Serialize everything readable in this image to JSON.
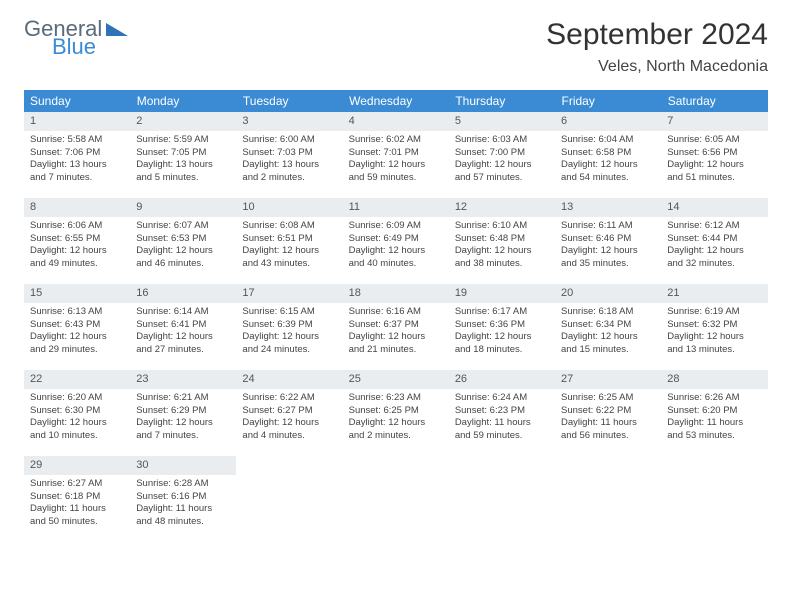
{
  "logo": {
    "general": "General",
    "blue": "Blue",
    "tri_color": "#2f72b5"
  },
  "header": {
    "month_title": "September 2024",
    "location": "Veles, North Macedonia"
  },
  "colors": {
    "header_bg": "#3b8bd4",
    "band_bg": "#e9edef",
    "text": "#444444"
  },
  "weekdays": [
    "Sunday",
    "Monday",
    "Tuesday",
    "Wednesday",
    "Thursday",
    "Friday",
    "Saturday"
  ],
  "weeks": [
    [
      {
        "n": "1",
        "sr": "Sunrise: 5:58 AM",
        "ss": "Sunset: 7:06 PM",
        "dl": "Daylight: 13 hours and 7 minutes."
      },
      {
        "n": "2",
        "sr": "Sunrise: 5:59 AM",
        "ss": "Sunset: 7:05 PM",
        "dl": "Daylight: 13 hours and 5 minutes."
      },
      {
        "n": "3",
        "sr": "Sunrise: 6:00 AM",
        "ss": "Sunset: 7:03 PM",
        "dl": "Daylight: 13 hours and 2 minutes."
      },
      {
        "n": "4",
        "sr": "Sunrise: 6:02 AM",
        "ss": "Sunset: 7:01 PM",
        "dl": "Daylight: 12 hours and 59 minutes."
      },
      {
        "n": "5",
        "sr": "Sunrise: 6:03 AM",
        "ss": "Sunset: 7:00 PM",
        "dl": "Daylight: 12 hours and 57 minutes."
      },
      {
        "n": "6",
        "sr": "Sunrise: 6:04 AM",
        "ss": "Sunset: 6:58 PM",
        "dl": "Daylight: 12 hours and 54 minutes."
      },
      {
        "n": "7",
        "sr": "Sunrise: 6:05 AM",
        "ss": "Sunset: 6:56 PM",
        "dl": "Daylight: 12 hours and 51 minutes."
      }
    ],
    [
      {
        "n": "8",
        "sr": "Sunrise: 6:06 AM",
        "ss": "Sunset: 6:55 PM",
        "dl": "Daylight: 12 hours and 49 minutes."
      },
      {
        "n": "9",
        "sr": "Sunrise: 6:07 AM",
        "ss": "Sunset: 6:53 PM",
        "dl": "Daylight: 12 hours and 46 minutes."
      },
      {
        "n": "10",
        "sr": "Sunrise: 6:08 AM",
        "ss": "Sunset: 6:51 PM",
        "dl": "Daylight: 12 hours and 43 minutes."
      },
      {
        "n": "11",
        "sr": "Sunrise: 6:09 AM",
        "ss": "Sunset: 6:49 PM",
        "dl": "Daylight: 12 hours and 40 minutes."
      },
      {
        "n": "12",
        "sr": "Sunrise: 6:10 AM",
        "ss": "Sunset: 6:48 PM",
        "dl": "Daylight: 12 hours and 38 minutes."
      },
      {
        "n": "13",
        "sr": "Sunrise: 6:11 AM",
        "ss": "Sunset: 6:46 PM",
        "dl": "Daylight: 12 hours and 35 minutes."
      },
      {
        "n": "14",
        "sr": "Sunrise: 6:12 AM",
        "ss": "Sunset: 6:44 PM",
        "dl": "Daylight: 12 hours and 32 minutes."
      }
    ],
    [
      {
        "n": "15",
        "sr": "Sunrise: 6:13 AM",
        "ss": "Sunset: 6:43 PM",
        "dl": "Daylight: 12 hours and 29 minutes."
      },
      {
        "n": "16",
        "sr": "Sunrise: 6:14 AM",
        "ss": "Sunset: 6:41 PM",
        "dl": "Daylight: 12 hours and 27 minutes."
      },
      {
        "n": "17",
        "sr": "Sunrise: 6:15 AM",
        "ss": "Sunset: 6:39 PM",
        "dl": "Daylight: 12 hours and 24 minutes."
      },
      {
        "n": "18",
        "sr": "Sunrise: 6:16 AM",
        "ss": "Sunset: 6:37 PM",
        "dl": "Daylight: 12 hours and 21 minutes."
      },
      {
        "n": "19",
        "sr": "Sunrise: 6:17 AM",
        "ss": "Sunset: 6:36 PM",
        "dl": "Daylight: 12 hours and 18 minutes."
      },
      {
        "n": "20",
        "sr": "Sunrise: 6:18 AM",
        "ss": "Sunset: 6:34 PM",
        "dl": "Daylight: 12 hours and 15 minutes."
      },
      {
        "n": "21",
        "sr": "Sunrise: 6:19 AM",
        "ss": "Sunset: 6:32 PM",
        "dl": "Daylight: 12 hours and 13 minutes."
      }
    ],
    [
      {
        "n": "22",
        "sr": "Sunrise: 6:20 AM",
        "ss": "Sunset: 6:30 PM",
        "dl": "Daylight: 12 hours and 10 minutes."
      },
      {
        "n": "23",
        "sr": "Sunrise: 6:21 AM",
        "ss": "Sunset: 6:29 PM",
        "dl": "Daylight: 12 hours and 7 minutes."
      },
      {
        "n": "24",
        "sr": "Sunrise: 6:22 AM",
        "ss": "Sunset: 6:27 PM",
        "dl": "Daylight: 12 hours and 4 minutes."
      },
      {
        "n": "25",
        "sr": "Sunrise: 6:23 AM",
        "ss": "Sunset: 6:25 PM",
        "dl": "Daylight: 12 hours and 2 minutes."
      },
      {
        "n": "26",
        "sr": "Sunrise: 6:24 AM",
        "ss": "Sunset: 6:23 PM",
        "dl": "Daylight: 11 hours and 59 minutes."
      },
      {
        "n": "27",
        "sr": "Sunrise: 6:25 AM",
        "ss": "Sunset: 6:22 PM",
        "dl": "Daylight: 11 hours and 56 minutes."
      },
      {
        "n": "28",
        "sr": "Sunrise: 6:26 AM",
        "ss": "Sunset: 6:20 PM",
        "dl": "Daylight: 11 hours and 53 minutes."
      }
    ],
    [
      {
        "n": "29",
        "sr": "Sunrise: 6:27 AM",
        "ss": "Sunset: 6:18 PM",
        "dl": "Daylight: 11 hours and 50 minutes."
      },
      {
        "n": "30",
        "sr": "Sunrise: 6:28 AM",
        "ss": "Sunset: 6:16 PM",
        "dl": "Daylight: 11 hours and 48 minutes."
      },
      null,
      null,
      null,
      null,
      null
    ]
  ]
}
